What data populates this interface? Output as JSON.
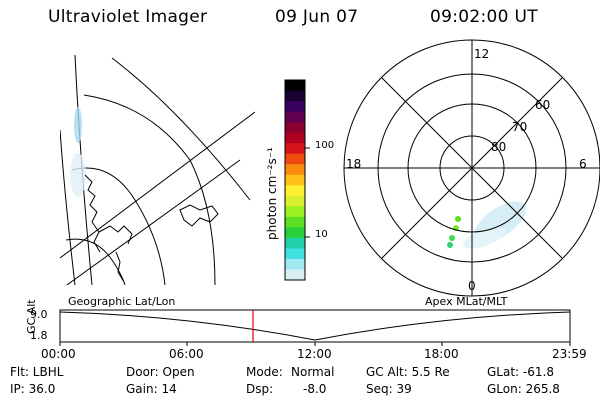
{
  "header": {
    "title": "Ultraviolet Imager",
    "date": "09 Jun 07",
    "time": "09:02:00 UT"
  },
  "colorbar": {
    "unit_label": "photon cm⁻²s⁻¹",
    "ticks": [
      "100",
      "10"
    ],
    "colors": [
      "#000000",
      "#1a0030",
      "#3a0060",
      "#600050",
      "#8a0030",
      "#b00020",
      "#d8141a",
      "#ef4a10",
      "#f88a0c",
      "#ffc018",
      "#fff030",
      "#d8f030",
      "#9cf020",
      "#5ae020",
      "#28d03c",
      "#20d0a8",
      "#40e0e0",
      "#a0e8f0",
      "#d8f0f4"
    ]
  },
  "polar_plot": {
    "mlt_labels": [
      "12",
      "18",
      "6",
      "0"
    ],
    "lat_labels": [
      "60",
      "70",
      "80"
    ]
  },
  "timeline": {
    "left_label": "Geographic Lat/Lon",
    "right_label": "Apex MLat/MLT",
    "axis_title": "GC Alt",
    "y_ticks": [
      "9.0",
      "1.8"
    ],
    "x_ticks": [
      "00:00",
      "06:00",
      "12:00",
      "18:00",
      "23:59"
    ],
    "current_time_color": "#e00000"
  },
  "status": {
    "col1": [
      "Flt: LBHL",
      "IP: 36.0"
    ],
    "col2": [
      "Door: Open",
      "Gain: 14"
    ],
    "col3_label": [
      "Mode:",
      "Dsp:"
    ],
    "col3_value": [
      "Normal",
      "-8.0"
    ],
    "col4": [
      "GC Alt: 5.5 Re",
      "Seq: 39"
    ],
    "col5": [
      "GLat: -61.8",
      "GLon: 265.8"
    ]
  }
}
